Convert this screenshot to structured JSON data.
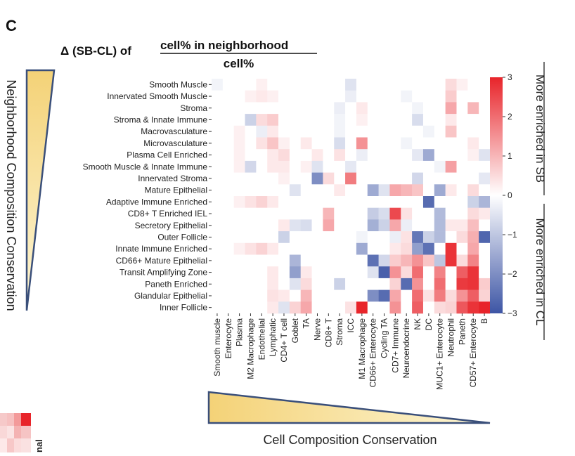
{
  "panel_letter": "C",
  "title_prefix": "Δ (SB-CL) of",
  "title_numerator": "cell% in neighborhood",
  "title_denominator": "cell%",
  "left_axis_label": "Neighborhood Composition Conservation",
  "bottom_axis_label": "Cell Composition Conservation",
  "colorbar_label_top": "More enriched in SB",
  "colorbar_label_bottom": "More enriched in CL",
  "corner_text": "nal",
  "colors": {
    "positive": "#e8242a",
    "negative": "#3d55a5",
    "neutral": "#ffffff",
    "gradient_light": "#fdf6d6",
    "gradient_dark": "#f4d277",
    "triangle_border": "#3a4f7a"
  },
  "chart_data": {
    "type": "heatmap",
    "rows": [
      "Smooth Muscle",
      "Innervated Smooth Muscle",
      "Stroma",
      "Stroma & Innate Immune",
      "Macrovasculature",
      "Microvasculature",
      "Plasma Cell Enriched",
      "Smooth Muscle & Innate Immune",
      "Innervated Stroma",
      "Mature Epithelial",
      "Adaptive Immune Enriched",
      "CD8+ T Enriched IEL",
      "Secretory Epithelial",
      "Outer Follicle",
      "Innate Immune Enriched",
      "CD66+ Mature Epithelial",
      "Transit Amplifying Zone",
      "Paneth Enriched",
      "Glandular Epithelial",
      "Inner Follicle"
    ],
    "columns": [
      "Smooth muscle",
      "Enterocyte",
      "Plasma",
      "M2 Macrophage",
      "Endothelial",
      "Lymphatic",
      "CD4+ T cell",
      "Goblet",
      "TA",
      "Nerve",
      "CD8+ T",
      "Stroma",
      "ICC",
      "M1 Macrophage",
      "CD66+ Enterocyte",
      "Cycling TA",
      "CD7+ Immune",
      "Neuroendocrine",
      "NK",
      "DC",
      "MUC1+ Enterocyte",
      "Neutrophil",
      "Paneth",
      "CD57+ Enterocyte",
      "B"
    ],
    "values": [
      [
        -0.2,
        0,
        0,
        0,
        0.2,
        0,
        0,
        0,
        0,
        0,
        0,
        0,
        -0.5,
        0,
        0,
        0,
        0,
        0,
        0,
        0,
        0,
        0.5,
        0.2,
        0,
        0
      ],
      [
        0,
        0,
        0,
        0.2,
        0.3,
        0.2,
        0,
        0,
        0,
        0,
        0,
        0,
        -0.3,
        0,
        0,
        0,
        0,
        -0.2,
        0,
        0,
        0,
        0.7,
        0,
        0,
        0
      ],
      [
        0,
        0,
        0,
        0,
        0,
        0,
        0,
        0,
        0,
        0,
        0,
        -0.3,
        0,
        0.3,
        0,
        0,
        0,
        0,
        -0.2,
        0,
        0,
        1.2,
        0,
        1.0,
        0
      ],
      [
        0,
        0,
        0,
        -0.8,
        0.5,
        0.7,
        0,
        0,
        0,
        0,
        0,
        -0.2,
        0,
        0.2,
        0,
        0,
        0,
        0,
        -0.6,
        0,
        0,
        0.3,
        0,
        0,
        0
      ],
      [
        0,
        0,
        0.2,
        0,
        -0.3,
        0.3,
        0,
        0,
        0,
        0,
        0,
        -0.2,
        0,
        0,
        0,
        0,
        0,
        0,
        0,
        -0.2,
        0,
        0.8,
        0,
        0,
        0
      ],
      [
        0,
        0,
        0.2,
        0,
        0.4,
        0.8,
        0.2,
        0,
        0.3,
        0,
        0,
        -0.6,
        0,
        1.5,
        0,
        0,
        0,
        -0.2,
        0,
        0,
        0,
        0,
        0,
        0.3,
        0
      ],
      [
        0,
        0,
        0.2,
        0,
        0,
        0.3,
        0.5,
        0,
        0,
        0.3,
        0,
        0.4,
        0,
        -0.3,
        0,
        0,
        0,
        0,
        -0.4,
        -1.5,
        0,
        0,
        0,
        0.2,
        -0.5
      ],
      [
        0,
        0,
        0.2,
        -0.7,
        0,
        0.3,
        0.3,
        0,
        0.2,
        -0.5,
        0,
        0,
        -0.4,
        0,
        0,
        0,
        0,
        0,
        0,
        0,
        -0.2,
        1.3,
        0,
        0,
        0
      ],
      [
        0,
        0,
        0,
        0,
        0,
        0,
        0.2,
        0,
        0,
        -2.0,
        0.5,
        0,
        1.8,
        0,
        0,
        0,
        0,
        0,
        -0.7,
        0,
        0,
        0,
        0,
        0,
        -0.4
      ],
      [
        0,
        0,
        0,
        0,
        0,
        0,
        0,
        -0.5,
        0,
        0,
        0,
        0.3,
        0,
        0,
        -1.5,
        -0.5,
        1.2,
        1.0,
        0.8,
        0,
        -1.5,
        0.3,
        0,
        0.5,
        0
      ],
      [
        0,
        0,
        0.2,
        0.4,
        0.6,
        0.3,
        0,
        0,
        0,
        0,
        0,
        0,
        0,
        0,
        0,
        0,
        0,
        0,
        0,
        -2.6,
        0,
        0,
        0,
        -0.8,
        -1.3
      ],
      [
        0,
        0,
        0,
        0,
        0,
        0,
        0,
        0,
        0,
        0,
        1.0,
        0,
        0,
        0,
        -0.9,
        -0.6,
        2.5,
        0.4,
        0,
        0,
        -1.2,
        0,
        0,
        0.5,
        0.3
      ],
      [
        0,
        0,
        0,
        0,
        0,
        0,
        0.3,
        -0.5,
        -0.6,
        0,
        1.2,
        0,
        0,
        0,
        -1.4,
        -0.8,
        1.2,
        -0.3,
        0,
        0,
        -1.2,
        0.3,
        0.3,
        0.9,
        0
      ],
      [
        0,
        0,
        0,
        0,
        0,
        0,
        -0.8,
        0,
        0,
        0,
        0,
        0,
        0,
        -0.2,
        0,
        0,
        -0.3,
        0.4,
        -2.4,
        -0.8,
        -1.2,
        0,
        0.5,
        1.1,
        -2.7
      ],
      [
        0,
        0,
        0.2,
        0.4,
        0.6,
        0.3,
        0,
        0,
        0,
        0,
        0,
        0,
        0,
        -1.5,
        0,
        0,
        0.3,
        0.5,
        -1.7,
        -2.5,
        0,
        2.8,
        0,
        1.2,
        0
      ],
      [
        0,
        0,
        0,
        0,
        0,
        0,
        0,
        -1.3,
        0,
        0,
        0,
        0,
        0,
        0,
        -2.5,
        -0.7,
        0.7,
        1.0,
        1.5,
        0.8,
        -1.0,
        2.8,
        0.5,
        1.7,
        0
      ],
      [
        0,
        0,
        0,
        0,
        0,
        0.3,
        0,
        -1.7,
        0.3,
        0,
        0,
        0,
        0,
        0,
        -0.5,
        -2.8,
        1.5,
        0.5,
        2.0,
        0,
        1.7,
        0,
        2.2,
        2.8,
        0
      ],
      [
        0,
        0,
        0,
        0,
        0,
        0.3,
        0,
        -0.5,
        0.5,
        0,
        0,
        -0.8,
        0,
        0,
        0,
        0,
        0.6,
        -2.6,
        1.5,
        0,
        2.0,
        0,
        2.7,
        2.8,
        0.7
      ],
      [
        0,
        0,
        0,
        0,
        0,
        0.4,
        0.3,
        0,
        1.0,
        0,
        0,
        0,
        0,
        0,
        -2.0,
        -2.6,
        1.2,
        0,
        2.0,
        0.4,
        1.8,
        0.5,
        1.5,
        2.2,
        0.6
      ],
      [
        0,
        0,
        0,
        0,
        0,
        0.3,
        -0.5,
        0.6,
        1.2,
        0,
        0,
        0,
        0.4,
        3.0,
        0,
        0,
        1.5,
        0,
        2.2,
        0,
        0.5,
        0.6,
        2.3,
        2.8,
        3.0
      ]
    ],
    "vmin": -3,
    "vmax": 3,
    "colorbar_ticks": [
      3,
      2,
      1,
      0,
      -1,
      -2,
      -3
    ],
    "colorbar_tick_labels": [
      "3",
      "2",
      "1",
      "0",
      "−1",
      "−2",
      "−3"
    ],
    "colormap": "diverging blue-white-red"
  }
}
